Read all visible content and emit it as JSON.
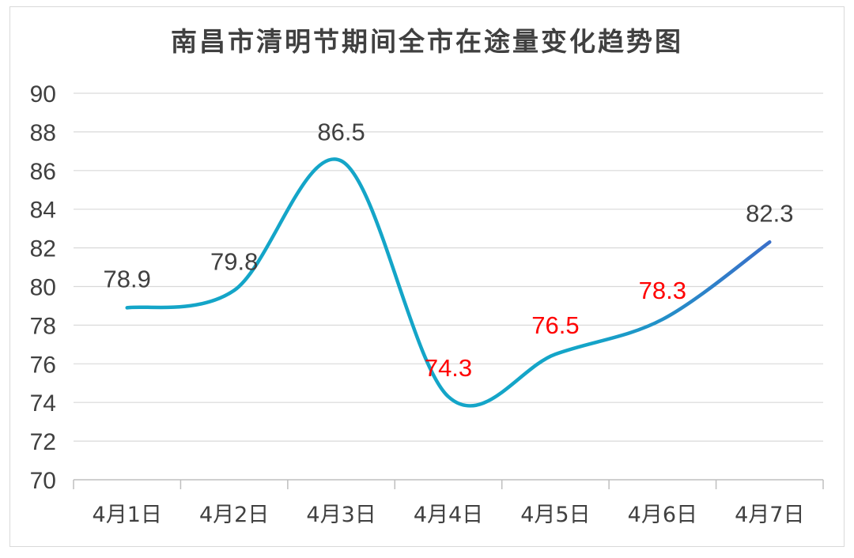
{
  "chart_data": {
    "type": "line",
    "title": "南昌市清明节期间全市在途量变化趋势图",
    "categories": [
      "4月1日",
      "4月2日",
      "4月3日",
      "4月4日",
      "4月5日",
      "4月6日",
      "4月7日"
    ],
    "values": [
      78.9,
      79.8,
      86.5,
      74.3,
      76.5,
      78.3,
      82.3
    ],
    "data_labels": [
      "78.9",
      "79.8",
      "86.5",
      "74.3",
      "76.5",
      "78.3",
      "82.3"
    ],
    "label_colors": [
      "#404040",
      "#404040",
      "#404040",
      "#ff0000",
      "#ff0000",
      "#ff0000",
      "#404040"
    ],
    "ylim": [
      70,
      90
    ],
    "yticks": [
      "70",
      "72",
      "74",
      "76",
      "78",
      "80",
      "82",
      "84",
      "86",
      "88",
      "90"
    ],
    "line_color_start": "#14a5c8",
    "line_color_end": "#3a6fc9",
    "smooth": true,
    "grid": true,
    "xlabel": "",
    "ylabel": ""
  }
}
